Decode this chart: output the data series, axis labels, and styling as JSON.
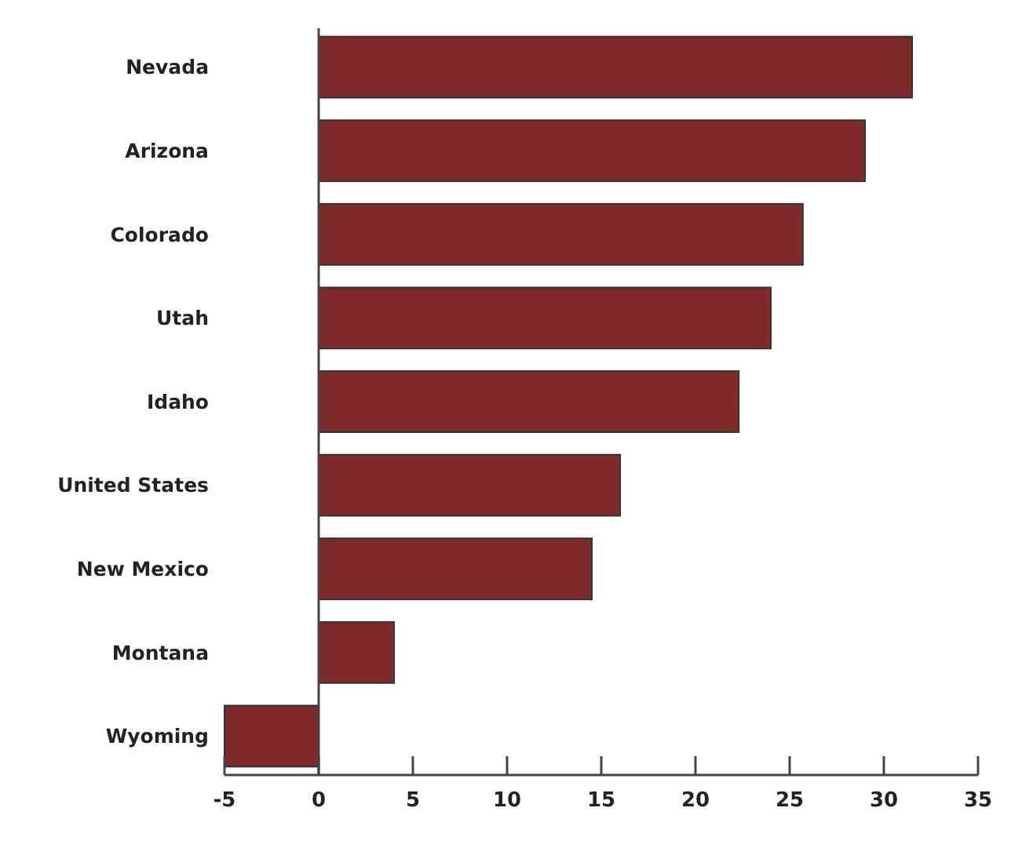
{
  "chart_data": {
    "type": "bar",
    "orientation": "horizontal",
    "categories": [
      "Nevada",
      "Arizona",
      "Colorado",
      "Utah",
      "Idaho",
      "United States",
      "New Mexico",
      "Montana",
      "Wyoming"
    ],
    "values": [
      31.5,
      29,
      25.7,
      24,
      22.3,
      16,
      14.5,
      4,
      -5
    ],
    "color": "#7f2b2a",
    "xlim": [
      -5,
      35
    ],
    "xticks": [
      -5,
      0,
      5,
      10,
      15,
      20,
      25,
      30,
      35
    ]
  }
}
